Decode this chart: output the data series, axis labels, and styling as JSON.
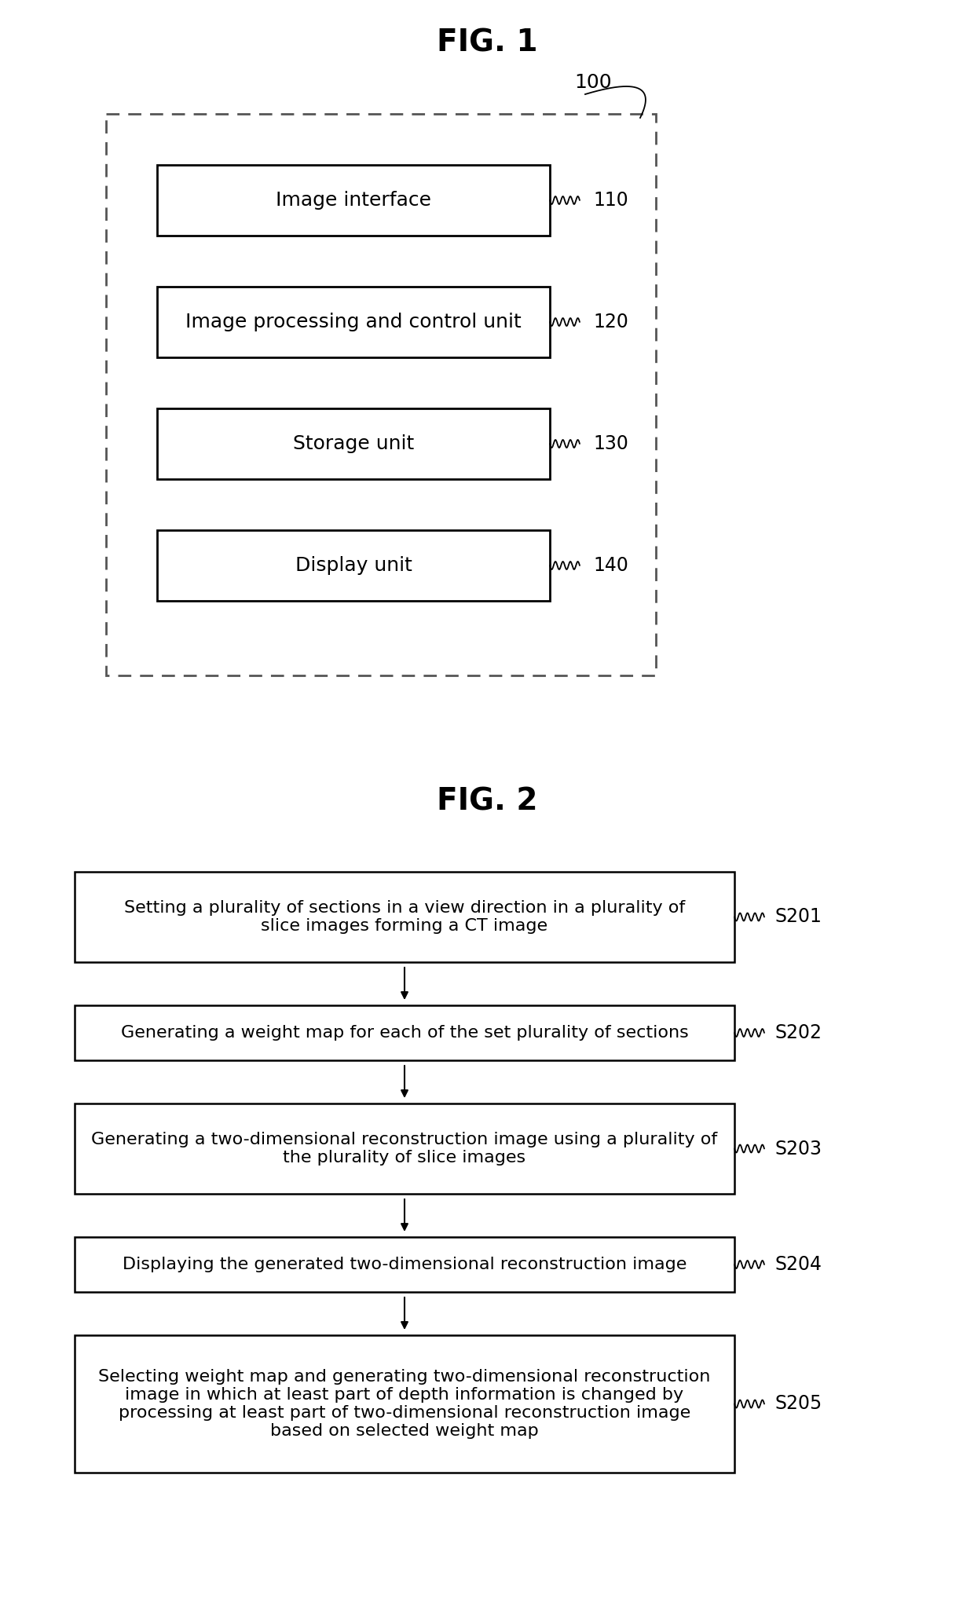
{
  "fig1_title": "FIG. 1",
  "fig2_title": "FIG. 2",
  "fig1_outer_label": "100",
  "fig1_boxes": [
    {
      "label": "Image interface",
      "ref": "110"
    },
    {
      "label": "Image processing and control unit",
      "ref": "120"
    },
    {
      "label": "Storage unit",
      "ref": "130"
    },
    {
      "label": "Display unit",
      "ref": "140"
    }
  ],
  "fig2_boxes": [
    {
      "label": "Setting a plurality of sections in a view direction in a plurality of\nslice images forming a CT image",
      "ref": "S201"
    },
    {
      "label": "Generating a weight map for each of the set plurality of sections",
      "ref": "S202"
    },
    {
      "label": "Generating a two-dimensional reconstruction image using a plurality of\nthe plurality of slice images",
      "ref": "S203"
    },
    {
      "label": "Displaying the generated two-dimensional reconstruction image",
      "ref": "S204"
    },
    {
      "label": "Selecting weight map and generating two-dimensional reconstruction\nimage in which at least part of depth information is changed by\nprocessing at least part of two-dimensional reconstruction image\nbased on selected weight map",
      "ref": "S205"
    }
  ],
  "bg_color": "#ffffff",
  "text_color": "#000000"
}
